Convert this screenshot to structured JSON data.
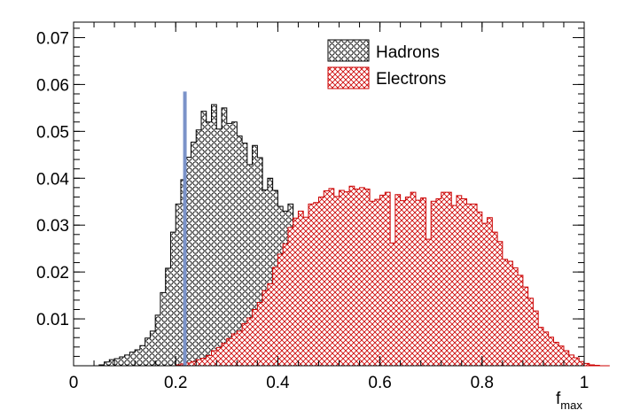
{
  "chart_data": {
    "type": "histogram",
    "title": "",
    "xlabel": "f",
    "xlabel_subscript": "max",
    "ylabel": "",
    "xlim": [
      0,
      1
    ],
    "ylim": [
      0,
      0.0733
    ],
    "x_ticks": [
      "0",
      "0.2",
      "0.4",
      "0.6",
      "0.8",
      "1"
    ],
    "y_ticks": [
      "0.01",
      "0.02",
      "0.03",
      "0.04",
      "0.05",
      "0.06",
      "0.07"
    ],
    "grid": false,
    "legend_position": "top-right",
    "bin_edges_start": 0.05,
    "bin_width": 0.01,
    "series": [
      {
        "name": "Hadrons",
        "pattern": "circles",
        "color": "#000000",
        "fill_color": "#000000",
        "values": [
          0.0002,
          0.0008,
          0.0013,
          0.0015,
          0.0019,
          0.0023,
          0.0029,
          0.0034,
          0.0043,
          0.0059,
          0.0074,
          0.0108,
          0.0156,
          0.0208,
          0.0285,
          0.0345,
          0.0397,
          0.0445,
          0.0477,
          0.0503,
          0.0543,
          0.052,
          0.0557,
          0.0505,
          0.055,
          0.0517,
          0.052,
          0.049,
          0.0475,
          0.0429,
          0.047,
          0.0444,
          0.0375,
          0.04,
          0.0374,
          0.034,
          0.033,
          0.0345,
          0.031,
          0.0297,
          0.0272,
          0.027,
          0.0233,
          0.0243,
          0.0225,
          0.021,
          0.0181,
          0.0173,
          0.0159,
          0.0142,
          0.0154,
          0.013,
          0.0117,
          0.011,
          0.0094,
          0.009,
          0.0085,
          0.0078,
          0.0071,
          0.0065,
          0.006,
          0.0053,
          0.0048,
          0.0044,
          0.004,
          0.0036,
          0.0033,
          0.003,
          0.0028,
          0.0026,
          0.0024,
          0.0022,
          0.002,
          0.0019,
          0.0018,
          0.0017,
          0.0016,
          0.0014,
          0.0013,
          0.0012,
          0.001,
          0.0009,
          0.0008,
          0.0007,
          0.0006,
          0.0005,
          0.0004,
          0.0003,
          0.0002,
          0.0001
        ]
      },
      {
        "name": "Electrons",
        "pattern": "crosshatch",
        "color": "#cc0000",
        "fill_color": "#cc0000",
        "values": [
          0,
          0,
          0,
          0,
          0,
          0,
          0,
          0,
          0,
          0,
          0,
          0,
          0,
          0,
          0,
          0.0002,
          0.0004,
          0.0006,
          0.0009,
          0.0013,
          0.0016,
          0.0022,
          0.0032,
          0.0039,
          0.0048,
          0.0058,
          0.0068,
          0.0074,
          0.009,
          0.0102,
          0.012,
          0.0135,
          0.016,
          0.0175,
          0.021,
          0.0238,
          0.026,
          0.0295,
          0.0315,
          0.033,
          0.0317,
          0.0345,
          0.0348,
          0.036,
          0.0373,
          0.0378,
          0.0361,
          0.0374,
          0.0371,
          0.0383,
          0.0377,
          0.038,
          0.0377,
          0.0351,
          0.0355,
          0.0364,
          0.037,
          0.0262,
          0.0365,
          0.0352,
          0.036,
          0.037,
          0.0353,
          0.0358,
          0.027,
          0.0351,
          0.0356,
          0.037,
          0.037,
          0.0342,
          0.0363,
          0.0356,
          0.0345,
          0.0345,
          0.0328,
          0.0304,
          0.0316,
          0.0285,
          0.0265,
          0.0227,
          0.0223,
          0.0209,
          0.0193,
          0.0168,
          0.0144,
          0.0117,
          0.0082,
          0.0072,
          0.0061,
          0.005,
          0.0042,
          0.0032,
          0.0023,
          0.0017,
          0.0009,
          0.0005,
          0.0002,
          0.0001,
          0,
          0
        ]
      }
    ],
    "annotations": [
      {
        "type": "vertical-line",
        "x": 0.218,
        "y_top": 0.0585,
        "color": "#7b93c9"
      }
    ]
  }
}
